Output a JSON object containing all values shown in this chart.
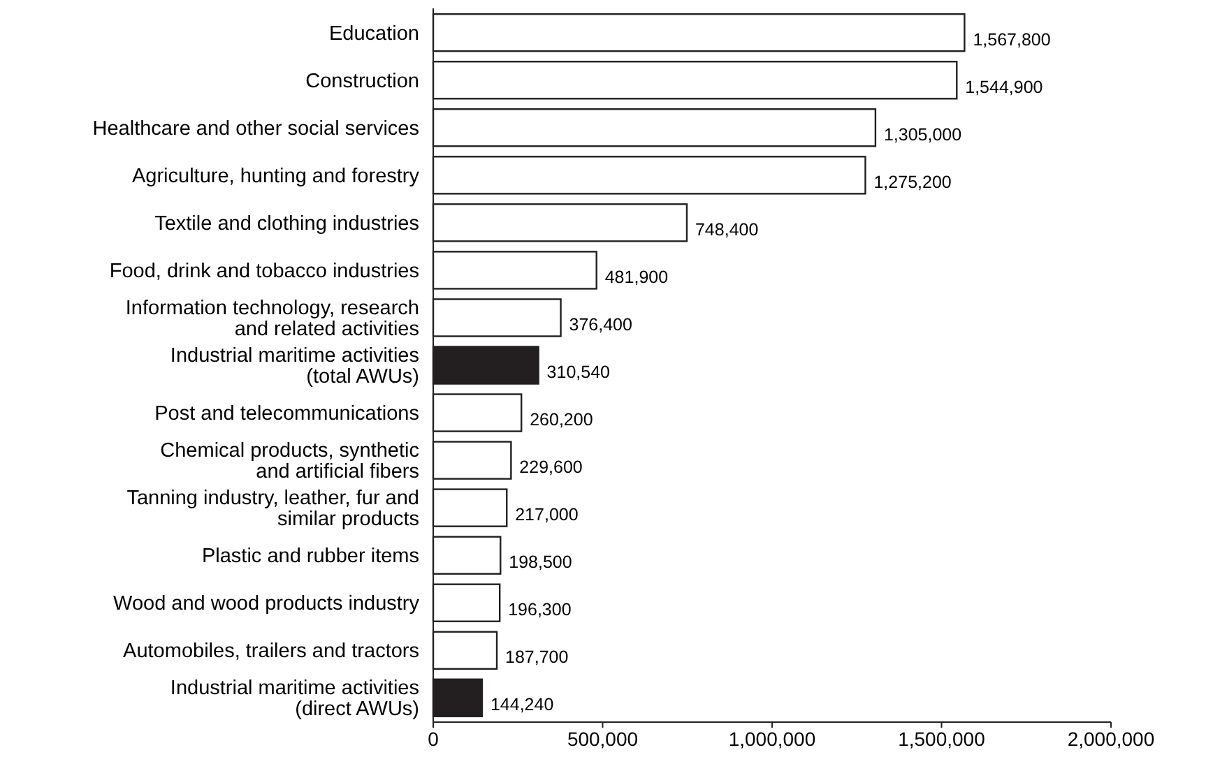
{
  "chart_data": {
    "type": "bar",
    "orientation": "horizontal",
    "categories": [
      "Education",
      "Construction",
      "Healthcare and other social services",
      "Agriculture, hunting and forestry",
      "Textile and clothing industries",
      "Food, drink and tobacco industries",
      "Information technology, research\nand related activities",
      "Industrial maritime activities\n(total AWUs)",
      "Post and telecommunications",
      "Chemical products, synthetic\nand artificial fibers",
      "Tanning industry, leather, fur and\nsimilar products",
      "Plastic and rubber items",
      "Wood and wood products industry",
      "Automobiles, trailers and tractors",
      "Industrial maritime activities\n(direct AWUs)"
    ],
    "values": [
      1567800,
      1544900,
      1305000,
      1275200,
      748400,
      481900,
      376400,
      310540,
      260200,
      229600,
      217000,
      198500,
      196300,
      187700,
      144240
    ],
    "colors": [
      "#ffffff",
      "#ffffff",
      "#ffffff",
      "#ffffff",
      "#ffffff",
      "#ffffff",
      "#ffffff",
      "#231f20",
      "#ffffff",
      "#ffffff",
      "#ffffff",
      "#ffffff",
      "#ffffff",
      "#ffffff",
      "#231f20"
    ],
    "xlim": [
      0,
      2000000
    ],
    "xticks": [
      0,
      {
        "value": 500000,
        "label": "500,000"
      },
      {
        "value": 1000000,
        "label": "1,000,000"
      },
      {
        "value": 1500000,
        "label": "1,500,000"
      },
      {
        "value": 2000000,
        "label": "2,000,000"
      }
    ],
    "value_labels": [
      "1,567,800",
      "1,544,900",
      "1,305,000",
      "1,275,200",
      "748,400",
      "481,900",
      "376,400",
      "310,540",
      "260,200",
      "229,600",
      "217,000",
      "198,500",
      "196,300",
      "187,700",
      "144,240"
    ],
    "grid": false
  }
}
